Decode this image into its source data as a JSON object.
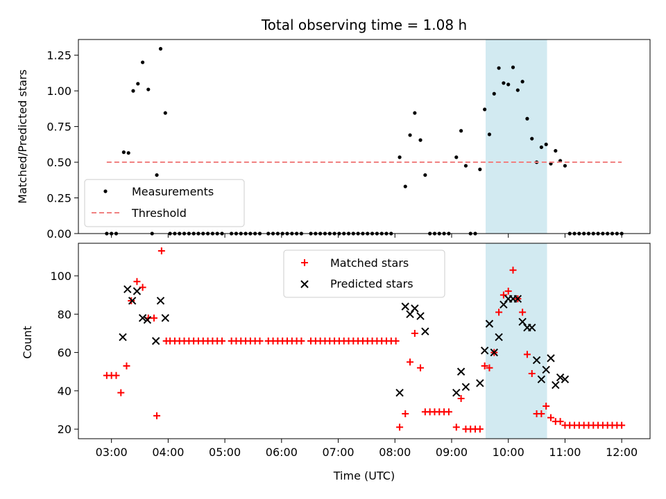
{
  "chart_data": [
    {
      "type": "scatter",
      "title": "Total observing time = 1.08 h",
      "xlabel": "",
      "ylabel": "Matched/Predicted stars",
      "ylim": [
        0,
        1.36
      ],
      "yticks": [
        0,
        0.25,
        0.5,
        0.75,
        1.0,
        1.25
      ],
      "ytick_labels": [
        "0.00",
        "0.25",
        "0.50",
        "0.75",
        "1.00",
        "1.25"
      ],
      "xlim": [
        "02:25",
        "12:30"
      ],
      "highlight_span": [
        "09:36",
        "10:41"
      ],
      "highlight_color": "#add8e6",
      "legend_position": "lower-left",
      "series": [
        {
          "name": "Measurements",
          "marker": "dot",
          "color": "#000000",
          "points": [
            [
              "02:55",
              0
            ],
            [
              "03:00",
              0
            ],
            [
              "03:05",
              0
            ],
            [
              "03:13",
              0.57
            ],
            [
              "03:18",
              0.565
            ],
            [
              "03:23",
              1.0
            ],
            [
              "03:28",
              1.05
            ],
            [
              "03:33",
              1.2
            ],
            [
              "03:39",
              1.01
            ],
            [
              "03:43",
              0
            ],
            [
              "03:48",
              0.41
            ],
            [
              "03:52",
              1.295
            ],
            [
              "03:57",
              0.845
            ],
            [
              "04:02",
              0
            ],
            [
              "04:07",
              0
            ],
            [
              "04:12",
              0
            ],
            [
              "04:17",
              0
            ],
            [
              "04:22",
              0
            ],
            [
              "04:27",
              0
            ],
            [
              "04:32",
              0
            ],
            [
              "04:37",
              0
            ],
            [
              "04:42",
              0
            ],
            [
              "04:47",
              0
            ],
            [
              "04:52",
              0
            ],
            [
              "04:57",
              0
            ],
            [
              "05:07",
              0
            ],
            [
              "05:12",
              0
            ],
            [
              "05:17",
              0
            ],
            [
              "05:22",
              0
            ],
            [
              "05:27",
              0
            ],
            [
              "05:32",
              0
            ],
            [
              "05:37",
              0
            ],
            [
              "05:46",
              0
            ],
            [
              "05:51",
              0
            ],
            [
              "05:56",
              0
            ],
            [
              "06:01",
              0
            ],
            [
              "06:06",
              0
            ],
            [
              "06:11",
              0
            ],
            [
              "06:16",
              0
            ],
            [
              "06:21",
              0
            ],
            [
              "06:31",
              0
            ],
            [
              "06:36",
              0
            ],
            [
              "06:41",
              0
            ],
            [
              "06:46",
              0
            ],
            [
              "06:51",
              0
            ],
            [
              "06:56",
              0
            ],
            [
              "07:01",
              0
            ],
            [
              "07:06",
              0
            ],
            [
              "07:11",
              0
            ],
            [
              "07:16",
              0
            ],
            [
              "07:21",
              0
            ],
            [
              "07:26",
              0
            ],
            [
              "07:31",
              0
            ],
            [
              "07:36",
              0
            ],
            [
              "07:41",
              0
            ],
            [
              "07:46",
              0
            ],
            [
              "07:51",
              0
            ],
            [
              "07:56",
              0
            ],
            [
              "08:05",
              0.535
            ],
            [
              "08:11",
              0.33
            ],
            [
              "08:16",
              0.69
            ],
            [
              "08:21",
              0.845
            ],
            [
              "08:27",
              0.655
            ],
            [
              "08:32",
              0.41
            ],
            [
              "08:37",
              0
            ],
            [
              "08:42",
              0
            ],
            [
              "08:47",
              0
            ],
            [
              "08:52",
              0
            ],
            [
              "08:57",
              0
            ],
            [
              "09:05",
              0.535
            ],
            [
              "09:10",
              0.72
            ],
            [
              "09:15",
              0.475
            ],
            [
              "09:20",
              0
            ],
            [
              "09:25",
              0
            ],
            [
              "09:30",
              0.45
            ],
            [
              "09:35",
              0.87
            ],
            [
              "09:40",
              0.695
            ],
            [
              "09:45",
              0.98
            ],
            [
              "09:50",
              1.16
            ],
            [
              "09:55",
              1.055
            ],
            [
              "10:00",
              1.045
            ],
            [
              "10:05",
              1.165
            ],
            [
              "10:10",
              1.005
            ],
            [
              "10:15",
              1.065
            ],
            [
              "10:20",
              0.805
            ],
            [
              "10:25",
              0.665
            ],
            [
              "10:30",
              0.5
            ],
            [
              "10:35",
              0.605
            ],
            [
              "10:40",
              0.625
            ],
            [
              "10:45",
              0.49
            ],
            [
              "10:50",
              0.58
            ],
            [
              "10:55",
              0.51
            ],
            [
              "11:00",
              0.475
            ],
            [
              "11:05",
              0
            ],
            [
              "11:10",
              0
            ],
            [
              "11:15",
              0
            ],
            [
              "11:20",
              0
            ],
            [
              "11:25",
              0
            ],
            [
              "11:30",
              0
            ],
            [
              "11:35",
              0
            ],
            [
              "11:40",
              0
            ],
            [
              "11:45",
              0
            ],
            [
              "11:50",
              0
            ],
            [
              "11:55",
              0
            ],
            [
              "12:00",
              0
            ]
          ]
        },
        {
          "name": "Threshold",
          "line_style": "dashed",
          "color": "#f08080",
          "points": [
            [
              "02:55",
              0.5
            ],
            [
              "12:00",
              0.5
            ]
          ]
        }
      ]
    },
    {
      "type": "scatter",
      "title": "",
      "xlabel": "Time (UTC)",
      "ylabel": "Count",
      "ylim": [
        15,
        117
      ],
      "yticks": [
        20,
        40,
        60,
        80,
        100
      ],
      "ytick_labels": [
        "20",
        "40",
        "60",
        "80",
        "100"
      ],
      "xlim": [
        "02:25",
        "12:30"
      ],
      "xticks": [
        "03:00",
        "04:00",
        "05:00",
        "06:00",
        "07:00",
        "08:00",
        "09:00",
        "10:00",
        "11:00",
        "12:00"
      ],
      "highlight_span": [
        "09:36",
        "10:41"
      ],
      "highlight_color": "#add8e6",
      "legend_position": "upper-center",
      "series": [
        {
          "name": "Matched stars",
          "marker": "plus",
          "color": "#ff0000",
          "points": [
            [
              "02:55",
              48
            ],
            [
              "03:00",
              48
            ],
            [
              "03:05",
              48
            ],
            [
              "03:10",
              39
            ],
            [
              "03:16",
              53
            ],
            [
              "03:21",
              87
            ],
            [
              "03:27",
              97
            ],
            [
              "03:33",
              94
            ],
            [
              "03:39",
              78
            ],
            [
              "03:45",
              78
            ],
            [
              "03:48",
              27
            ],
            [
              "03:53",
              113
            ],
            [
              "03:58",
              66
            ],
            [
              "04:02",
              66
            ],
            [
              "04:07",
              66
            ],
            [
              "04:12",
              66
            ],
            [
              "04:17",
              66
            ],
            [
              "04:22",
              66
            ],
            [
              "04:27",
              66
            ],
            [
              "04:32",
              66
            ],
            [
              "04:37",
              66
            ],
            [
              "04:42",
              66
            ],
            [
              "04:47",
              66
            ],
            [
              "04:52",
              66
            ],
            [
              "04:57",
              66
            ],
            [
              "05:07",
              66
            ],
            [
              "05:12",
              66
            ],
            [
              "05:17",
              66
            ],
            [
              "05:22",
              66
            ],
            [
              "05:27",
              66
            ],
            [
              "05:32",
              66
            ],
            [
              "05:37",
              66
            ],
            [
              "05:46",
              66
            ],
            [
              "05:51",
              66
            ],
            [
              "05:56",
              66
            ],
            [
              "06:01",
              66
            ],
            [
              "06:06",
              66
            ],
            [
              "06:11",
              66
            ],
            [
              "06:16",
              66
            ],
            [
              "06:21",
              66
            ],
            [
              "06:31",
              66
            ],
            [
              "06:36",
              66
            ],
            [
              "06:41",
              66
            ],
            [
              "06:46",
              66
            ],
            [
              "06:51",
              66
            ],
            [
              "06:56",
              66
            ],
            [
              "07:01",
              66
            ],
            [
              "07:06",
              66
            ],
            [
              "07:11",
              66
            ],
            [
              "07:16",
              66
            ],
            [
              "07:21",
              66
            ],
            [
              "07:26",
              66
            ],
            [
              "07:31",
              66
            ],
            [
              "07:36",
              66
            ],
            [
              "07:41",
              66
            ],
            [
              "07:46",
              66
            ],
            [
              "07:51",
              66
            ],
            [
              "07:56",
              66
            ],
            [
              "08:01",
              66
            ],
            [
              "08:05",
              21
            ],
            [
              "08:11",
              28
            ],
            [
              "08:16",
              55
            ],
            [
              "08:21",
              70
            ],
            [
              "08:27",
              52
            ],
            [
              "08:32",
              29
            ],
            [
              "08:37",
              29
            ],
            [
              "08:42",
              29
            ],
            [
              "08:47",
              29
            ],
            [
              "08:52",
              29
            ],
            [
              "08:57",
              29
            ],
            [
              "09:05",
              21
            ],
            [
              "09:10",
              36
            ],
            [
              "09:15",
              20
            ],
            [
              "09:20",
              20
            ],
            [
              "09:25",
              20
            ],
            [
              "09:30",
              20
            ],
            [
              "09:35",
              53
            ],
            [
              "09:40",
              52
            ],
            [
              "09:45",
              60
            ],
            [
              "09:50",
              81
            ],
            [
              "09:55",
              90
            ],
            [
              "10:00",
              92
            ],
            [
              "10:05",
              103
            ],
            [
              "10:10",
              88
            ],
            [
              "10:15",
              81
            ],
            [
              "10:20",
              59
            ],
            [
              "10:25",
              49
            ],
            [
              "10:30",
              28
            ],
            [
              "10:35",
              28
            ],
            [
              "10:40",
              32
            ],
            [
              "10:45",
              26
            ],
            [
              "10:50",
              24
            ],
            [
              "10:55",
              24
            ],
            [
              "11:00",
              22
            ],
            [
              "11:05",
              22
            ],
            [
              "11:10",
              22
            ],
            [
              "11:15",
              22
            ],
            [
              "11:20",
              22
            ],
            [
              "11:25",
              22
            ],
            [
              "11:30",
              22
            ],
            [
              "11:35",
              22
            ],
            [
              "11:40",
              22
            ],
            [
              "11:45",
              22
            ],
            [
              "11:50",
              22
            ],
            [
              "11:55",
              22
            ],
            [
              "12:00",
              22
            ]
          ]
        },
        {
          "name": "Predicted stars",
          "marker": "x",
          "color": "#000000",
          "points": [
            [
              "03:12",
              68
            ],
            [
              "03:17",
              93
            ],
            [
              "03:22",
              87
            ],
            [
              "03:27",
              92
            ],
            [
              "03:33",
              78
            ],
            [
              "03:38",
              77
            ],
            [
              "03:47",
              66
            ],
            [
              "03:52",
              87
            ],
            [
              "03:57",
              78
            ],
            [
              "08:05",
              39
            ],
            [
              "08:11",
              84
            ],
            [
              "08:16",
              80
            ],
            [
              "08:21",
              83
            ],
            [
              "08:27",
              79
            ],
            [
              "08:32",
              71
            ],
            [
              "09:05",
              39
            ],
            [
              "09:10",
              50
            ],
            [
              "09:15",
              42
            ],
            [
              "09:30",
              44
            ],
            [
              "09:35",
              61
            ],
            [
              "09:40",
              75
            ],
            [
              "09:45",
              60
            ],
            [
              "09:50",
              68
            ],
            [
              "09:55",
              85
            ],
            [
              "10:00",
              88
            ],
            [
              "10:05",
              88
            ],
            [
              "10:10",
              88
            ],
            [
              "10:15",
              76
            ],
            [
              "10:20",
              73
            ],
            [
              "10:25",
              73
            ],
            [
              "10:30",
              56
            ],
            [
              "10:35",
              46
            ],
            [
              "10:40",
              51
            ],
            [
              "10:45",
              57
            ],
            [
              "10:50",
              43
            ],
            [
              "10:55",
              47
            ],
            [
              "11:00",
              46
            ]
          ]
        }
      ]
    }
  ]
}
